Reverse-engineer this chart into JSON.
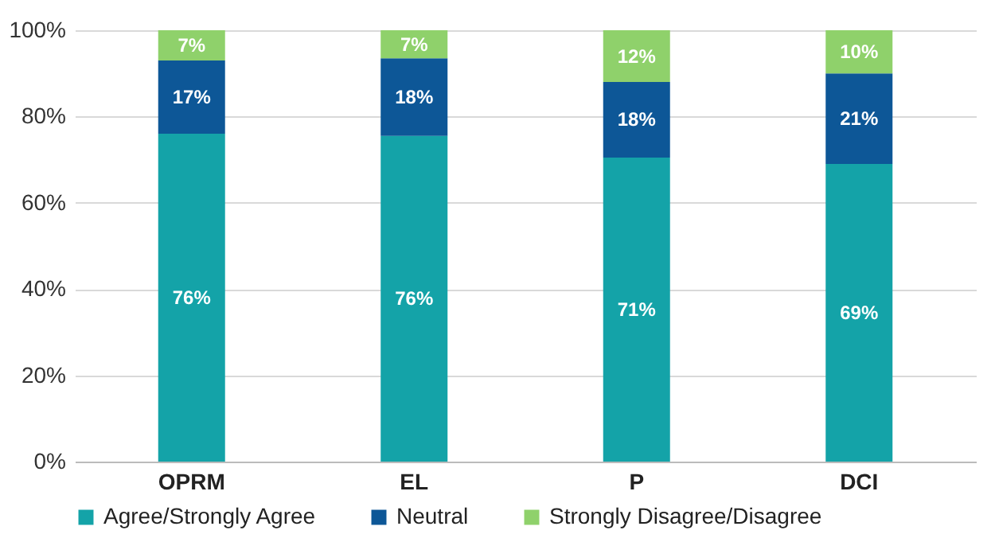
{
  "chart_data": {
    "type": "bar",
    "stacked": true,
    "categories": [
      "OPRM",
      "EL",
      "P",
      "DCI"
    ],
    "series": [
      {
        "name": "Agree/Strongly Agree",
        "color": "#14a3a8",
        "values": [
          76,
          75.5,
          70.5,
          69
        ],
        "value_labels": [
          "76%",
          "76%",
          "71%",
          "69%"
        ]
      },
      {
        "name": "Neutral",
        "color": "#0d5797",
        "values": [
          17,
          18,
          17.5,
          21
        ],
        "value_labels": [
          "17%",
          "18%",
          "18%",
          "21%"
        ]
      },
      {
        "name": "Strongly Disagree/Disagree",
        "color": "#8fd16b",
        "values": [
          7,
          6.5,
          12,
          10
        ],
        "value_labels": [
          "7%",
          "7%",
          "12%",
          "10%"
        ]
      }
    ],
    "ylim": [
      0,
      100
    ],
    "yticks": [
      {
        "value": 0,
        "label": "0%"
      },
      {
        "value": 20,
        "label": "20%"
      },
      {
        "value": 40,
        "label": "40%"
      },
      {
        "value": 60,
        "label": "60%"
      },
      {
        "value": 80,
        "label": "80%"
      },
      {
        "value": 100,
        "label": "100%"
      }
    ],
    "grid": "y",
    "legend": "bottom"
  }
}
